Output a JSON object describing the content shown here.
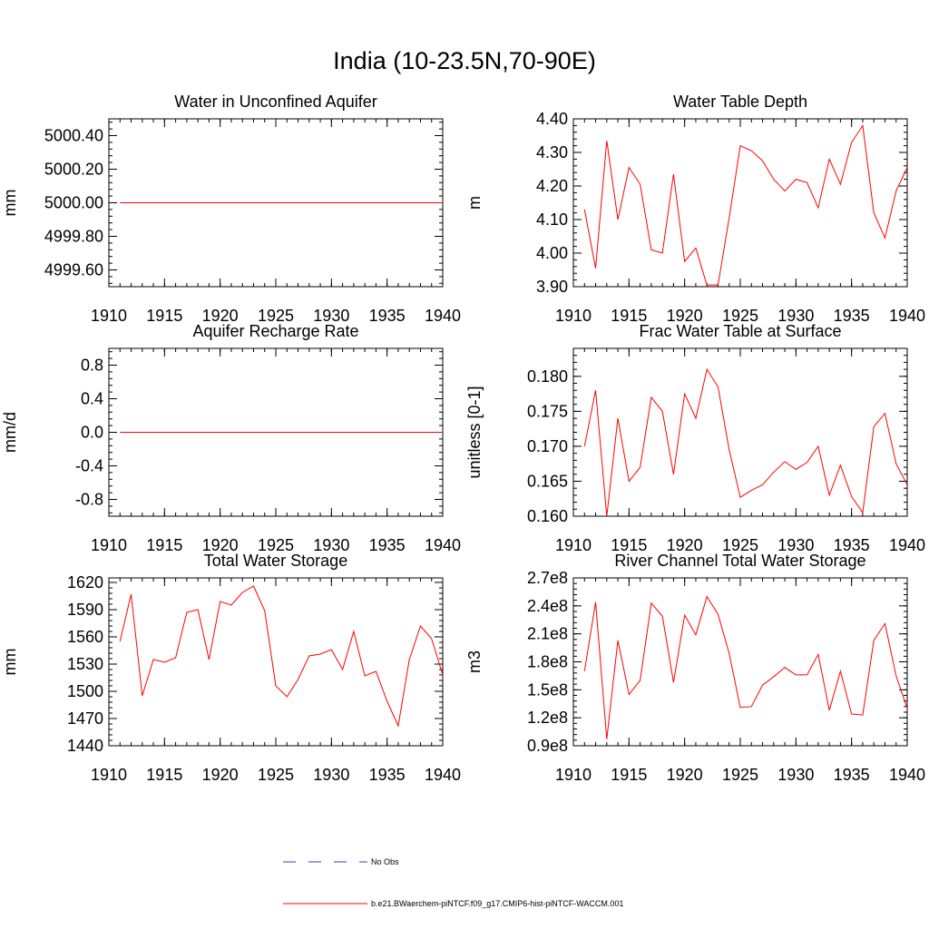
{
  "figure": {
    "title": "India (10-23.5N,70-90E)"
  },
  "legend": {
    "entries": [
      {
        "label": "No Obs",
        "color": "#3b3bd0",
        "dash": true
      },
      {
        "label": "b.e21.BWaerchem-piNTCF.f09_g17.CMIP6-hist-piNTCF-WACCM.001",
        "color": "#ff0000",
        "dash": false
      }
    ]
  },
  "chart_data": [
    {
      "type": "line",
      "title": "Water in Unconfined Aquifer",
      "ylabel": "mm",
      "xlim": [
        1910,
        1940
      ],
      "ylim": [
        4999.5,
        5000.5
      ],
      "xticks": [
        1910,
        1915,
        1920,
        1925,
        1930,
        1935,
        1940
      ],
      "xtick_labels": [
        "1910",
        "1915",
        "1920",
        "1925",
        "1930",
        "1935",
        "1940"
      ],
      "yticks": [
        4999.6,
        4999.8,
        5000.0,
        5000.2,
        5000.4
      ],
      "ytick_labels": [
        "4999.60",
        "4999.80",
        "5000.00",
        "5000.20",
        "5000.40"
      ],
      "series": [
        {
          "color": "#ff0000",
          "x": [
            1911,
            1912,
            1913,
            1914,
            1915,
            1916,
            1917,
            1918,
            1919,
            1920,
            1921,
            1922,
            1923,
            1924,
            1925,
            1926,
            1927,
            1928,
            1929,
            1930,
            1931,
            1932,
            1933,
            1934,
            1935,
            1936,
            1937,
            1938,
            1939,
            1940
          ],
          "y": [
            5000,
            5000,
            5000,
            5000,
            5000,
            5000,
            5000,
            5000,
            5000,
            5000,
            5000,
            5000,
            5000,
            5000,
            5000,
            5000,
            5000,
            5000,
            5000,
            5000,
            5000,
            5000,
            5000,
            5000,
            5000,
            5000,
            5000,
            5000,
            5000,
            5000
          ]
        }
      ]
    },
    {
      "type": "line",
      "title": "Water Table Depth",
      "ylabel": "m",
      "xlim": [
        1910,
        1940
      ],
      "ylim": [
        3.9,
        4.4
      ],
      "xticks": [
        1910,
        1915,
        1920,
        1925,
        1930,
        1935,
        1940
      ],
      "xtick_labels": [
        "1910",
        "1915",
        "1920",
        "1925",
        "1930",
        "1935",
        "1940"
      ],
      "yticks": [
        3.9,
        4.0,
        4.1,
        4.2,
        4.3,
        4.4
      ],
      "ytick_labels": [
        "3.90",
        "4.00",
        "4.10",
        "4.20",
        "4.30",
        "4.40"
      ],
      "series": [
        {
          "color": "#ff0000",
          "x": [
            1911,
            1912,
            1913,
            1914,
            1915,
            1916,
            1917,
            1918,
            1919,
            1920,
            1921,
            1922,
            1923,
            1924,
            1925,
            1926,
            1927,
            1928,
            1929,
            1930,
            1931,
            1932,
            1933,
            1934,
            1935,
            1936,
            1937,
            1938,
            1939,
            1940
          ],
          "y": [
            4.13,
            3.955,
            4.335,
            4.1,
            4.255,
            4.205,
            4.01,
            4.0,
            4.235,
            3.975,
            4.015,
            3.905,
            3.905,
            4.105,
            4.32,
            4.305,
            4.275,
            4.22,
            4.185,
            4.22,
            4.21,
            4.135,
            4.28,
            4.205,
            4.33,
            4.38,
            4.12,
            4.045,
            4.185,
            4.255
          ]
        }
      ]
    },
    {
      "type": "line",
      "title": "Aquifer Recharge Rate",
      "ylabel": "mm/d",
      "xlim": [
        1910,
        1940
      ],
      "ylim": [
        -1.0,
        1.0
      ],
      "xticks": [
        1910,
        1915,
        1920,
        1925,
        1930,
        1935,
        1940
      ],
      "xtick_labels": [
        "1910",
        "1915",
        "1920",
        "1925",
        "1930",
        "1935",
        "1940"
      ],
      "yticks": [
        -0.8,
        -0.4,
        0.0,
        0.4,
        0.8
      ],
      "ytick_labels": [
        "-0.8",
        "-0.4",
        "0.0",
        "0.4",
        "0.8"
      ],
      "series": [
        {
          "color": "#ff0000",
          "x": [
            1911,
            1912,
            1913,
            1914,
            1915,
            1916,
            1917,
            1918,
            1919,
            1920,
            1921,
            1922,
            1923,
            1924,
            1925,
            1926,
            1927,
            1928,
            1929,
            1930,
            1931,
            1932,
            1933,
            1934,
            1935,
            1936,
            1937,
            1938,
            1939,
            1940
          ],
          "y": [
            0,
            0,
            0,
            0,
            0,
            0,
            0,
            0,
            0,
            0,
            0,
            0,
            0,
            0,
            0,
            0,
            0,
            0,
            0,
            0,
            0,
            0,
            0,
            0,
            0,
            0,
            0,
            0,
            0,
            0
          ]
        }
      ]
    },
    {
      "type": "line",
      "title": "Frac Water Table at Surface",
      "ylabel": "unitless [0-1]",
      "xlim": [
        1910,
        1940
      ],
      "ylim": [
        0.16,
        0.184
      ],
      "xticks": [
        1910,
        1915,
        1920,
        1925,
        1930,
        1935,
        1940
      ],
      "xtick_labels": [
        "1910",
        "1915",
        "1920",
        "1925",
        "1930",
        "1935",
        "1940"
      ],
      "yticks": [
        0.16,
        0.165,
        0.17,
        0.175,
        0.18
      ],
      "ytick_labels": [
        "0.160",
        "0.165",
        "0.170",
        "0.175",
        "0.180"
      ],
      "series": [
        {
          "color": "#ff0000",
          "x": [
            1911,
            1912,
            1913,
            1914,
            1915,
            1916,
            1917,
            1918,
            1919,
            1920,
            1921,
            1922,
            1923,
            1924,
            1925,
            1926,
            1927,
            1928,
            1929,
            1930,
            1931,
            1932,
            1933,
            1934,
            1935,
            1936,
            1937,
            1938,
            1939,
            1940
          ],
          "y": [
            0.17,
            0.178,
            0.16,
            0.174,
            0.165,
            0.167,
            0.177,
            0.175,
            0.166,
            0.1775,
            0.174,
            0.181,
            0.1785,
            0.1695,
            0.1627,
            0.1637,
            0.1645,
            0.1663,
            0.1678,
            0.1667,
            0.1677,
            0.17,
            0.163,
            0.1673,
            0.1628,
            0.1605,
            0.1728,
            0.1747,
            0.1675,
            0.1645
          ]
        }
      ]
    },
    {
      "type": "line",
      "title": "Total Water Storage",
      "ylabel": "mm",
      "xlim": [
        1910,
        1940
      ],
      "ylim": [
        1440,
        1625
      ],
      "xticks": [
        1910,
        1915,
        1920,
        1925,
        1930,
        1935,
        1940
      ],
      "xtick_labels": [
        "1910",
        "1915",
        "1920",
        "1925",
        "1930",
        "1935",
        "1940"
      ],
      "yticks": [
        1440,
        1470,
        1500,
        1530,
        1560,
        1590,
        1620
      ],
      "ytick_labels": [
        "1440",
        "1470",
        "1500",
        "1530",
        "1560",
        "1590",
        "1620"
      ],
      "series": [
        {
          "color": "#ff0000",
          "x": [
            1911,
            1912,
            1913,
            1914,
            1915,
            1916,
            1917,
            1918,
            1919,
            1920,
            1921,
            1922,
            1923,
            1924,
            1925,
            1926,
            1927,
            1928,
            1929,
            1930,
            1931,
            1932,
            1933,
            1934,
            1935,
            1936,
            1937,
            1938,
            1939,
            1940
          ],
          "y": [
            1555,
            1607,
            1495,
            1535,
            1532,
            1537,
            1587,
            1590,
            1535,
            1599,
            1595,
            1609,
            1616,
            1589,
            1506,
            1494,
            1513,
            1539,
            1541,
            1546,
            1524,
            1566,
            1517,
            1522,
            1489,
            1462,
            1535,
            1572,
            1558,
            1518
          ]
        }
      ]
    },
    {
      "type": "line",
      "title": "River Channel Total Water Storage",
      "ylabel": "m3",
      "xlim": [
        1910,
        1940
      ],
      "ylim": [
        90000000,
        270000000
      ],
      "xticks": [
        1910,
        1915,
        1920,
        1925,
        1930,
        1935,
        1940
      ],
      "xtick_labels": [
        "1910",
        "1915",
        "1920",
        "1925",
        "1930",
        "1935",
        "1940"
      ],
      "yticks": [
        90000000,
        120000000,
        150000000,
        180000000,
        210000000,
        240000000,
        270000000
      ],
      "ytick_labels": [
        "0.9e8",
        "1.2e8",
        "1.5e8",
        "1.8e8",
        "2.1e8",
        "2.4e8",
        "2.7e8"
      ],
      "series": [
        {
          "color": "#ff0000",
          "x": [
            1911,
            1912,
            1913,
            1914,
            1915,
            1916,
            1917,
            1918,
            1919,
            1920,
            1921,
            1922,
            1923,
            1924,
            1925,
            1926,
            1927,
            1928,
            1929,
            1930,
            1931,
            1932,
            1933,
            1934,
            1935,
            1936,
            1937,
            1938,
            1939,
            1940
          ],
          "y": [
            170000000,
            244000000,
            97000000,
            203000000,
            145000000,
            160000000,
            243000000,
            229000000,
            158000000,
            230000000,
            209000000,
            250000000,
            231000000,
            189000000,
            131000000,
            132000000,
            155000000,
            164000000,
            174000000,
            166000000,
            166000000,
            188000000,
            128000000,
            170000000,
            124000000,
            123000000,
            203000000,
            221000000,
            165000000,
            130000000
          ]
        }
      ]
    }
  ]
}
